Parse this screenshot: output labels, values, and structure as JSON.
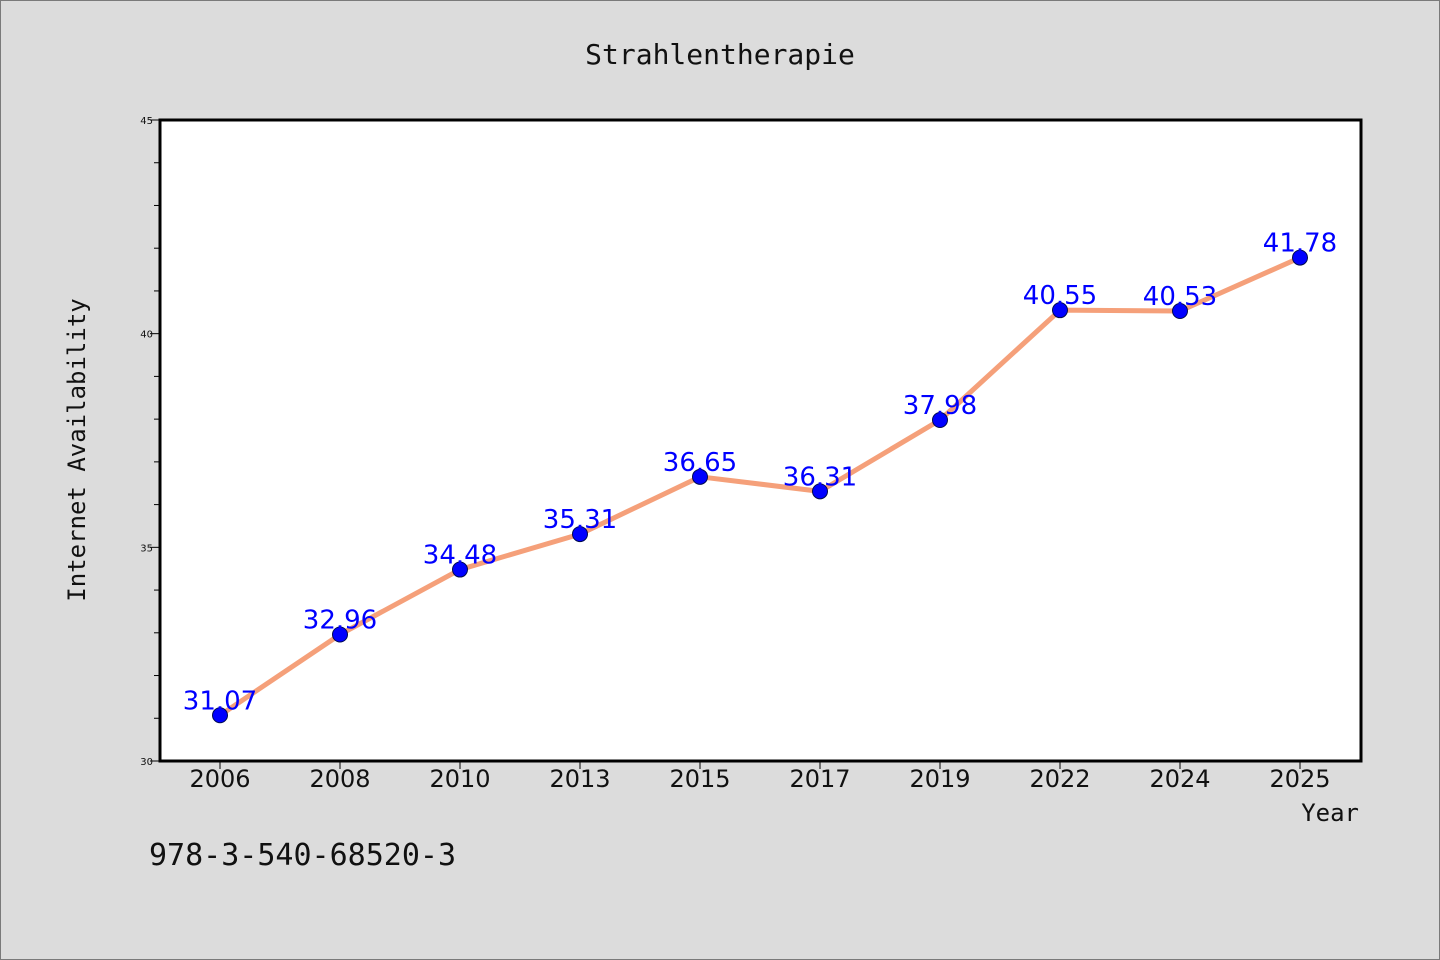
{
  "annotation": "978-3-540-68520-3",
  "colors": {
    "background": "#dcdcdc",
    "plot_background": "#ffffff",
    "line": "#f5a07a",
    "marker": "#0000ff",
    "data_label": "#0000ff"
  },
  "chart_data": {
    "type": "line",
    "title": "Strahlentherapie",
    "xlabel": "Year",
    "ylabel": "Internet Availability",
    "categories": [
      "2006",
      "2008",
      "2010",
      "2013",
      "2015",
      "2017",
      "2019",
      "2022",
      "2024",
      "2025"
    ],
    "series": [
      {
        "values": [
          31.07,
          32.96,
          34.48,
          35.31,
          36.65,
          36.31,
          37.98,
          40.55,
          40.53,
          41.78
        ],
        "labels": [
          "31.07",
          "32.96",
          "34.48",
          "35.31",
          "36.65",
          "36.31",
          "37.98",
          "40.55",
          "40.53",
          "41.78"
        ]
      }
    ],
    "ylim": [
      30,
      45
    ],
    "yticks": [
      30,
      35,
      40,
      45
    ],
    "ytick_labels": [
      "30",
      "35",
      "40",
      "45"
    ],
    "y_minor_step": 1,
    "grid": false,
    "legend": "none"
  }
}
